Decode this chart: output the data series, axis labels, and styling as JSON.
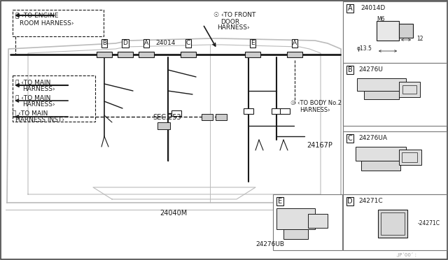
{
  "bg_color": "#ffffff",
  "line_color": "#1a1a1a",
  "gray_color": "#999999",
  "light_gray": "#bbbbbb",
  "mid_gray": "#777777",
  "panel_bg": "#ffffff",
  "fig_width": 6.4,
  "fig_height": 3.72,
  "dpi": 100,
  "labels": {
    "part_a": "24014D",
    "part_b": "24276U",
    "part_c": "24276UA",
    "part_d": "24271C",
    "part_e": "24276UB",
    "part_24014": "24014",
    "part_main": "24040M",
    "part_harness": "24167P",
    "m6": "M6",
    "phi135": "φ13.5",
    "dim12": "12",
    "sec253": "SEC.253",
    "jp00": ".JP´00´ :"
  }
}
